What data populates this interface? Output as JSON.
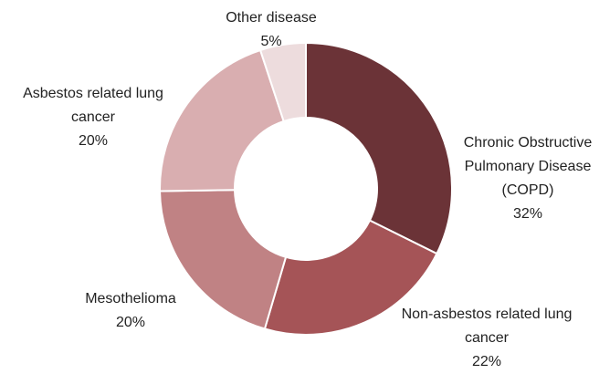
{
  "chart_data": {
    "type": "pie",
    "categories": [
      "Chronic Obstructive Pulmonary Disease (COPD)",
      "Non-asbestos related lung cancer",
      "Mesothelioma",
      "Asbestos related lung cancer",
      "Other disease"
    ],
    "values": [
      32,
      22,
      20,
      20,
      5
    ],
    "value_labels": [
      "32%",
      "22%",
      "20%",
      "20%",
      "5%"
    ],
    "colors": [
      "#6b3337",
      "#a55457",
      "#c08284",
      "#d9aeb0",
      "#eddcdd"
    ]
  }
}
